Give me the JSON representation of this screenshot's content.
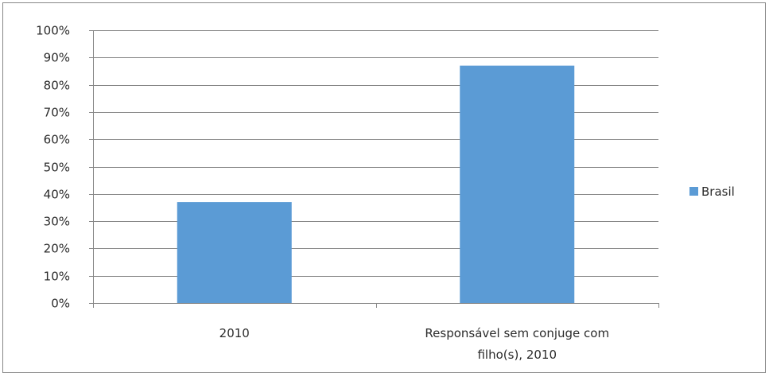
{
  "chart_data": {
    "type": "bar",
    "categories": [
      [
        "2010"
      ],
      [
        "Responsável sem conjuge com",
        "filho(s), 2010"
      ]
    ],
    "series": [
      {
        "name": "Brasil",
        "color": "#5b9bd5",
        "values": [
          37,
          87
        ]
      }
    ],
    "yticks": [
      "0%",
      "10%",
      "20%",
      "30%",
      "40%",
      "50%",
      "60%",
      "70%",
      "80%",
      "90%",
      "100%"
    ],
    "ylim": [
      0,
      100
    ],
    "grid": true,
    "legend": "right"
  }
}
